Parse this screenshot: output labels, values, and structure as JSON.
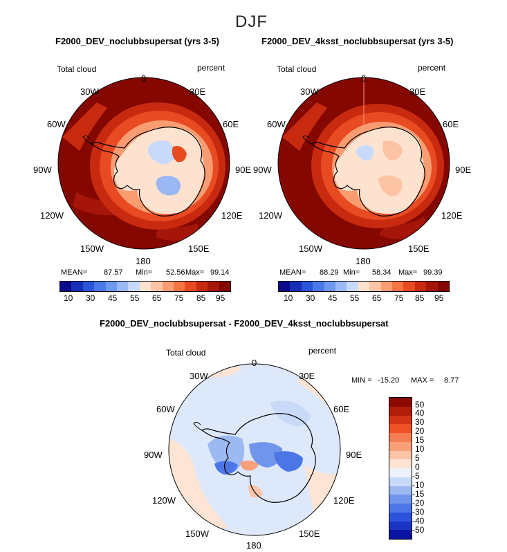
{
  "figure": {
    "season": "DJF"
  },
  "panels": [
    {
      "title": "F2000_DEV_noclubbsupersat (yrs 3-5)",
      "variable": "Total cloud",
      "units": "percent",
      "stats": {
        "mean_label": "MEAN=",
        "mean": "87.57",
        "min_label": "Min=",
        "min": "52.56",
        "max_label": "Max=",
        "max": "99.14"
      },
      "colorbar": {
        "colors": [
          "#0a0a8c",
          "#1530b4",
          "#2a55d8",
          "#4a7ae8",
          "#6e98ee",
          "#9ab8f3",
          "#c8dafa",
          "#fde3cf",
          "#fcc4a4",
          "#fa9c72",
          "#f57444",
          "#e84a22",
          "#c82a10",
          "#a5150a",
          "#850800"
        ],
        "labels": [
          "10",
          "30",
          "45",
          "55",
          "65",
          "75",
          "85",
          "95"
        ]
      }
    },
    {
      "title": "F2000_DEV_4ksst_noclubbsupersat (yrs 3-5)",
      "variable": "Total cloud",
      "units": "percent",
      "stats": {
        "mean_label": "MEAN=",
        "mean": "88.29",
        "min_label": "Min=",
        "min": "58.34",
        "max_label": "Max=",
        "max": "99.39"
      },
      "colorbar": {
        "colors": [
          "#0a0a8c",
          "#1530b4",
          "#2a55d8",
          "#4a7ae8",
          "#6e98ee",
          "#9ab8f3",
          "#c8dafa",
          "#fde3cf",
          "#fcc4a4",
          "#fa9c72",
          "#f57444",
          "#e84a22",
          "#c82a10",
          "#a5150a",
          "#850800"
        ],
        "labels": [
          "10",
          "30",
          "45",
          "55",
          "65",
          "75",
          "85",
          "95"
        ]
      }
    },
    {
      "title": "F2000_DEV_noclubbsupersat - F2000_DEV_4ksst_noclubbsupersat",
      "variable": "Total cloud",
      "units": "percent",
      "stats": {
        "min_label": "MIN =",
        "min": "-15.20",
        "max_label": "MAX =",
        "max": "8.77"
      },
      "colorbar": {
        "colors": [
          "#8c0a00",
          "#b01e08",
          "#d23414",
          "#ee5226",
          "#f57e52",
          "#f8a07a",
          "#fbc4a6",
          "#fde4d4",
          "#eef2fa",
          "#c8daf7",
          "#9cb9f2",
          "#7096ec",
          "#4c76e6",
          "#2c54da",
          "#1a34c4",
          "#0a12a2"
        ],
        "labels": [
          "50",
          "40",
          "30",
          "20",
          "15",
          "10",
          "5",
          "0",
          "-5",
          "-10",
          "-15",
          "-20",
          "-30",
          "-40",
          "-50"
        ]
      }
    }
  ],
  "longitudes": [
    "0",
    "30E",
    "60E",
    "90E",
    "120E",
    "150E",
    "180",
    "150W",
    "120W",
    "90W",
    "60W",
    "30W"
  ]
}
